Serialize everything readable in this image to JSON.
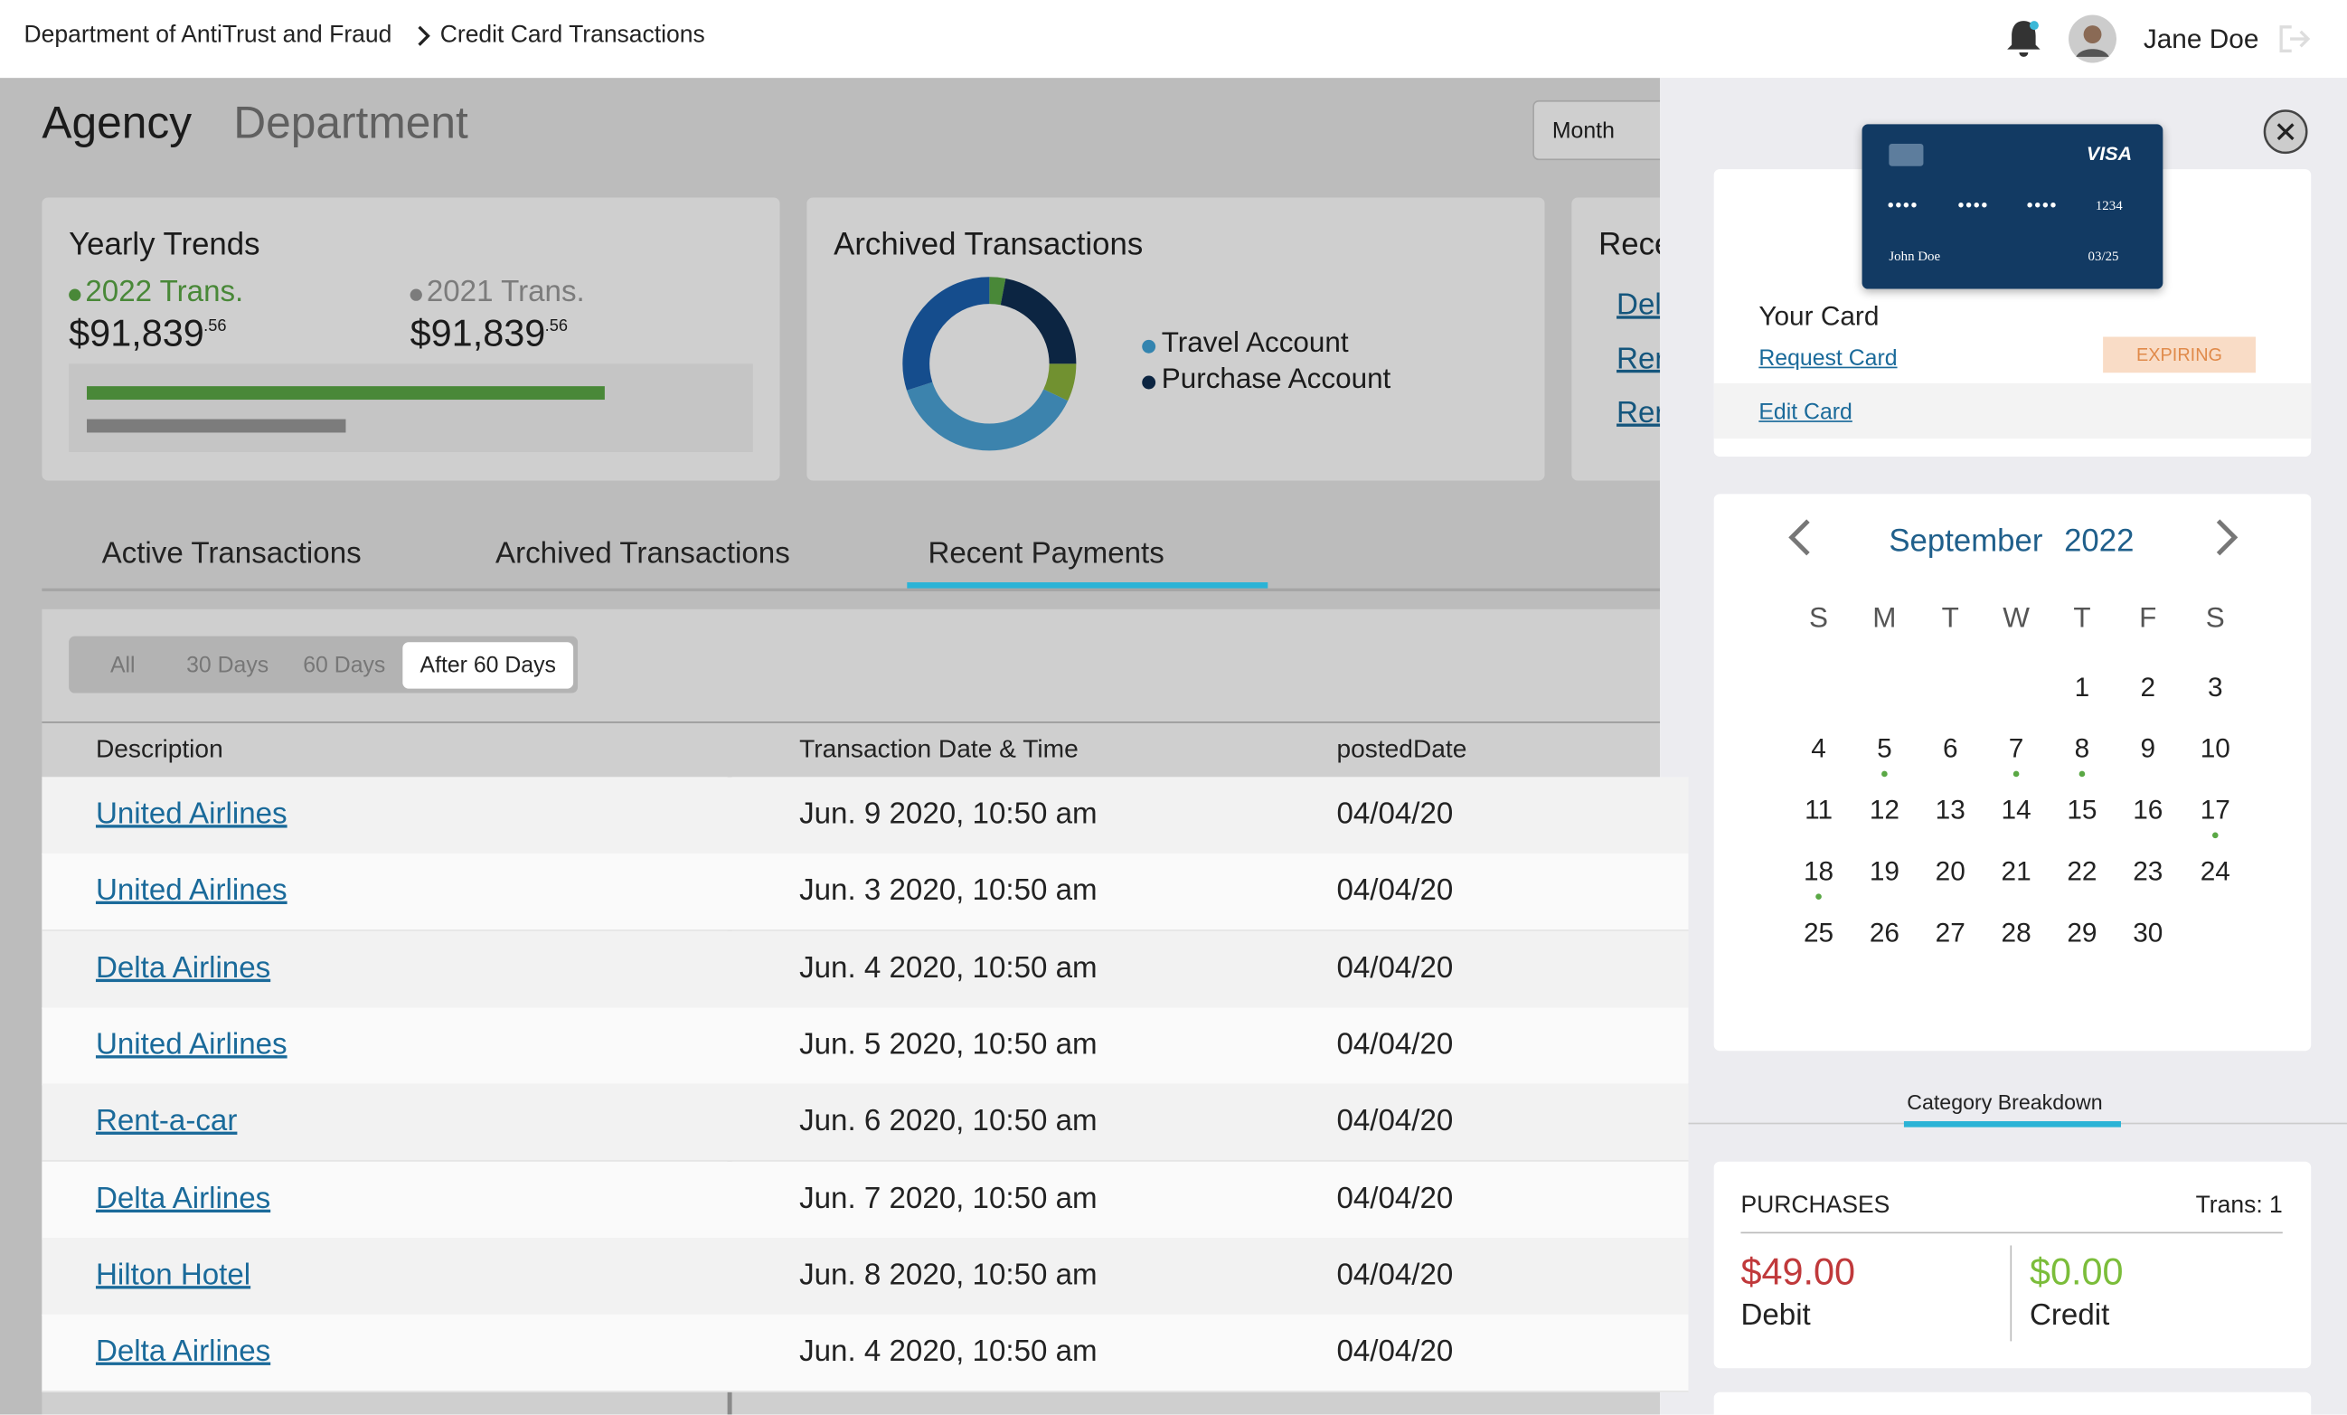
{
  "topbar": {
    "breadcrumb": [
      "Department of AntiTrust and Fraud",
      "Credit Card Transactions"
    ],
    "user": "Jane Doe"
  },
  "view_tabs": [
    "Agency",
    "Department"
  ],
  "period_select": "Month",
  "yearly_trends": {
    "title": "Yearly Trends",
    "items": [
      {
        "label": "2022 Trans.",
        "amount": "$91,839",
        "cents": ".56",
        "color": "#5aa845"
      },
      {
        "label": "2021 Trans.",
        "amount": "$91,839",
        "cents": ".56",
        "color": "#999999"
      }
    ]
  },
  "archived_card": {
    "title": "Archived Transactions",
    "legend": [
      {
        "label": "Travel Account",
        "color": "#3fa3d8"
      },
      {
        "label": "Purchase Account",
        "color": "#0f2e52"
      }
    ],
    "donut": [
      {
        "value": 3,
        "color": "#5aa845"
      },
      {
        "value": 22,
        "color": "#0f2e52"
      },
      {
        "value": 7,
        "color": "#8cb33c"
      },
      {
        "value": 38,
        "color": "#4aa2d6"
      },
      {
        "value": 30,
        "color": "#1b5fae"
      }
    ]
  },
  "recent_card": {
    "title": "Rece",
    "links": [
      "Del",
      "Rer",
      "Rer"
    ]
  },
  "tabs": {
    "items": [
      "Active Transactions",
      "Archived Transactions",
      "Recent Payments"
    ],
    "active": 2
  },
  "filters": {
    "items": [
      "All",
      "30 Days",
      "60 Days",
      "After 60 Days"
    ],
    "active": 3
  },
  "table": {
    "headers": [
      "Description",
      "Transaction Date & Time",
      "postedDate"
    ],
    "rows": [
      [
        "United Airlines",
        "Jun. 9 2020, 10:50 am",
        "04/04/20"
      ],
      [
        "United Airlines",
        "Jun. 3 2020, 10:50 am",
        "04/04/20"
      ],
      [
        "Delta Airlines",
        "Jun. 4 2020, 10:50 am",
        "04/04/20"
      ],
      [
        "United Airlines",
        "Jun. 5 2020, 10:50 am",
        "04/04/20"
      ],
      [
        "Rent-a-car",
        "Jun. 6 2020, 10:50 am",
        "04/04/20"
      ],
      [
        "Delta Airlines",
        "Jun. 7 2020, 10:50 am",
        "04/04/20"
      ],
      [
        "Hilton Hotel",
        "Jun. 8 2020, 10:50 am",
        "04/04/20"
      ],
      [
        "Delta Airlines",
        "Jun. 4 2020, 10:50 am",
        "04/04/20"
      ]
    ]
  },
  "panel": {
    "card": {
      "brand": "VISA",
      "groups": [
        "••••",
        "••••",
        "••••"
      ],
      "last4": "1234",
      "holder": "John Doe",
      "expiry": "03/25"
    },
    "your_card": "Your Card",
    "request_card": "Request Card",
    "status": "EXPIRING",
    "edit_card": "Edit Card",
    "calendar": {
      "month": "September",
      "year": "2022",
      "weekdays": [
        "S",
        "M",
        "T",
        "W",
        "T",
        "F",
        "S"
      ],
      "days": [
        null,
        null,
        null,
        null,
        {
          "label": "1"
        },
        {
          "label": "2"
        },
        {
          "label": "3"
        },
        {
          "label": "4"
        },
        {
          "label": "5",
          "dot": true
        },
        {
          "label": "6"
        },
        {
          "label": "7",
          "dot": true
        },
        {
          "label": "8",
          "dot": true
        },
        {
          "label": "9"
        },
        {
          "label": "10"
        },
        {
          "label": "11"
        },
        {
          "label": "12"
        },
        {
          "label": "13"
        },
        {
          "label": "14"
        },
        {
          "label": "15"
        },
        {
          "label": "16"
        },
        {
          "label": "17",
          "dot": true
        },
        {
          "label": "18",
          "dot": true
        },
        {
          "label": "19"
        },
        {
          "label": "20"
        },
        {
          "label": "21"
        },
        {
          "label": "22"
        },
        {
          "label": "23"
        },
        {
          "label": "24"
        },
        {
          "label": "25"
        },
        {
          "label": "26"
        },
        {
          "label": "27"
        },
        {
          "label": "28"
        },
        {
          "label": "29"
        },
        {
          "label": "30"
        }
      ]
    },
    "breakdown_tab": "Category Breakdown",
    "purchases": {
      "title": "PURCHASES",
      "trans": "Trans: 1",
      "debit_amount": "$49.00",
      "debit_label": "Debit",
      "credit_amount": "$0.00",
      "credit_label": "Credit"
    }
  }
}
